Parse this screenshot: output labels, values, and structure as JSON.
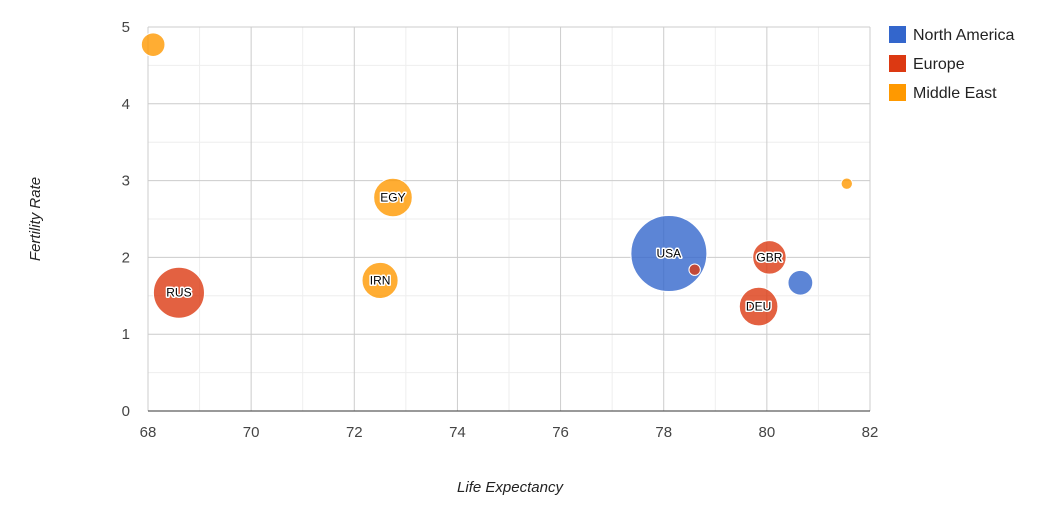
{
  "chart_data": {
    "type": "scatter",
    "variant": "bubble",
    "xlabel": "Life Expectancy",
    "ylabel": "Fertility Rate",
    "xlim": [
      68,
      82
    ],
    "ylim": [
      0,
      5
    ],
    "x_ticks": [
      68,
      70,
      72,
      74,
      76,
      78,
      80,
      82
    ],
    "y_ticks": [
      0,
      1,
      2,
      3,
      4,
      5
    ],
    "grid": true,
    "legend_position": "right",
    "series": [
      {
        "name": "North America",
        "color": "#3366cc"
      },
      {
        "name": "Europe",
        "color": "#dc3912"
      },
      {
        "name": "Middle East",
        "color": "#ff9900"
      }
    ],
    "points": [
      {
        "label": "",
        "x": 68.1,
        "y": 4.77,
        "series": "Middle East",
        "size": 0.03
      },
      {
        "label": "RUS",
        "x": 68.6,
        "y": 1.54,
        "series": "Europe",
        "size": 0.14
      },
      {
        "label": "EGY",
        "x": 72.75,
        "y": 2.78,
        "series": "Middle East",
        "size": 0.08
      },
      {
        "label": "IRN",
        "x": 72.5,
        "y": 1.7,
        "series": "Middle East",
        "size": 0.07
      },
      {
        "label": "USA",
        "x": 78.1,
        "y": 2.05,
        "series": "North America",
        "size": 0.31
      },
      {
        "label": "",
        "x": 78.6,
        "y": 1.84,
        "series": "Europe",
        "size": 0.007
      },
      {
        "label": "GBR",
        "x": 80.05,
        "y": 2.0,
        "series": "Europe",
        "size": 0.06
      },
      {
        "label": "DEU",
        "x": 79.84,
        "y": 1.36,
        "series": "Europe",
        "size": 0.08
      },
      {
        "label": "",
        "x": 80.65,
        "y": 1.67,
        "series": "North America",
        "size": 0.033
      },
      {
        "label": "",
        "x": 81.55,
        "y": 2.96,
        "series": "Middle East",
        "size": 0.007
      }
    ]
  }
}
